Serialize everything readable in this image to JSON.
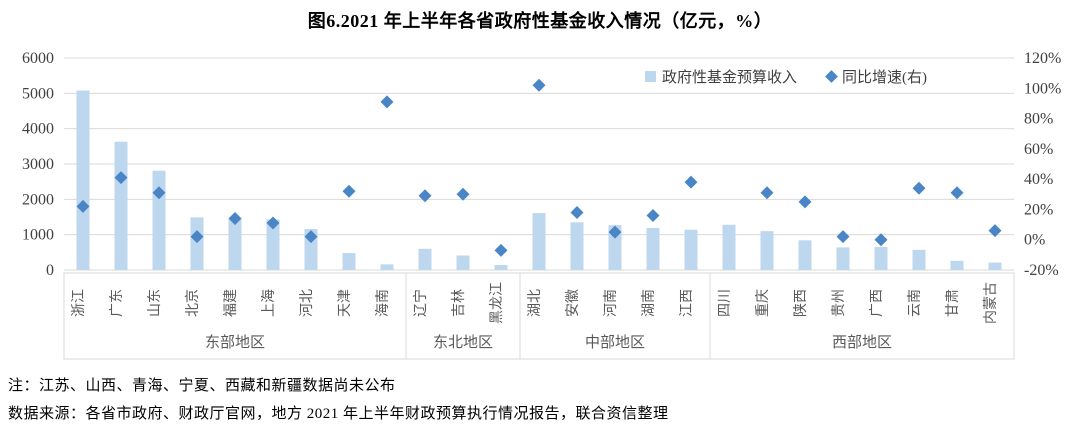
{
  "title": "图6.2021 年上半年各省政府性基金收入情况（亿元，%）",
  "legend": {
    "income_label": "政府性基金预算收入",
    "growth_label": "同比增速(右)"
  },
  "notes": {
    "note1": "注：江苏、山西、青海、宁夏、西藏和新疆数据尚未公布",
    "note2": "数据来源：各省市政府、财政厅官网，地方 2021 年上半年财政预算执行情况报告，联合资信整理"
  },
  "colors": {
    "bar": "#BDD7EE",
    "diamond": "#4A86C6",
    "grid": "#D9D9D9",
    "tick_text": "#404040",
    "category_text": "#595959"
  },
  "chart_data": {
    "type": "bar",
    "title": "图6.2021 年上半年各省政府性基金收入情况（亿元，%）",
    "left_axis": {
      "unit": "亿元",
      "range": [
        0,
        6000
      ],
      "ticks": [
        0,
        1000,
        2000,
        3000,
        4000,
        5000,
        6000
      ]
    },
    "right_axis": {
      "unit": "%",
      "range": [
        -20,
        120
      ],
      "ticks": [
        -20,
        0,
        20,
        40,
        60,
        80,
        100,
        120
      ]
    },
    "grid": true,
    "legend_position": "top-right-inside",
    "series_names": [
      "政府性基金预算收入",
      "同比增速(右)"
    ],
    "groups": [
      {
        "name": "东部地区",
        "items": [
          {
            "label": "浙江",
            "revenue": 5080,
            "growth": 22
          },
          {
            "label": "广东",
            "revenue": 3630,
            "growth": 41
          },
          {
            "label": "山东",
            "revenue": 2810,
            "growth": 31
          },
          {
            "label": "北京",
            "revenue": 1490,
            "growth": 2
          },
          {
            "label": "福建",
            "revenue": 1450,
            "growth": 14
          },
          {
            "label": "上海",
            "revenue": 1430,
            "growth": 11
          },
          {
            "label": "河北",
            "revenue": 1160,
            "growth": 2
          },
          {
            "label": "天津",
            "revenue": 480,
            "growth": 32
          },
          {
            "label": "海南",
            "revenue": 160,
            "growth": 91
          }
        ]
      },
      {
        "name": "东北地区",
        "items": [
          {
            "label": "辽宁",
            "revenue": 600,
            "growth": 29
          },
          {
            "label": "吉林",
            "revenue": 410,
            "growth": 30
          },
          {
            "label": "黑龙江",
            "revenue": 140,
            "growth": -7
          }
        ]
      },
      {
        "name": "中部地区",
        "items": [
          {
            "label": "湖北",
            "revenue": 1610,
            "growth": 102
          },
          {
            "label": "安徽",
            "revenue": 1350,
            "growth": 18
          },
          {
            "label": "河南",
            "revenue": 1270,
            "growth": 5
          },
          {
            "label": "湖南",
            "revenue": 1190,
            "growth": 16
          },
          {
            "label": "江西",
            "revenue": 1140,
            "growth": 38
          }
        ]
      },
      {
        "name": "西部地区",
        "items": [
          {
            "label": "四川",
            "revenue": 1280,
            "growth": null
          },
          {
            "label": "重庆",
            "revenue": 1100,
            "growth": 31
          },
          {
            "label": "陕西",
            "revenue": 840,
            "growth": 25
          },
          {
            "label": "贵州",
            "revenue": 640,
            "growth": 2
          },
          {
            "label": "广西",
            "revenue": 650,
            "growth": 0
          },
          {
            "label": "云南",
            "revenue": 570,
            "growth": 34
          },
          {
            "label": "甘肃",
            "revenue": 260,
            "growth": 31
          },
          {
            "label": "内蒙古",
            "revenue": 210,
            "growth": 6
          }
        ]
      }
    ]
  }
}
